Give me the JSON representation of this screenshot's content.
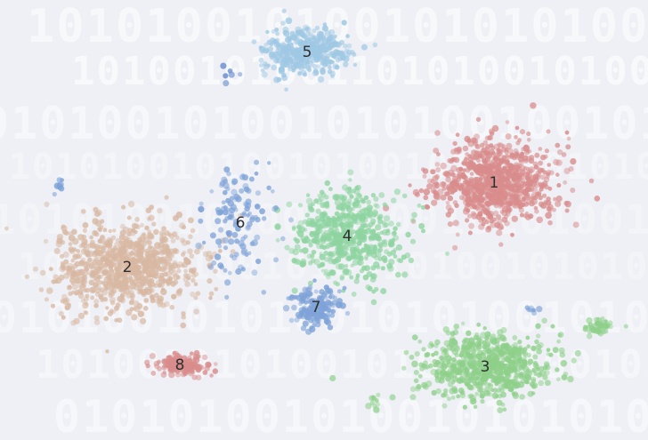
{
  "background_text": [
    "1010100101001010101001010010101",
    "101001010011010100101001010",
    "0101001010010101001001010100101",
    "1010100101001010010101001010",
    "0101010010100101001010100101",
    "1001010100101001010010101001",
    "0101001010100101010010100101",
    "1010010101001010010100101010",
    "0101010010100101010100101001"
  ],
  "chart_data": {
    "type": "scatter",
    "title": "",
    "xlabel": "",
    "ylabel": "",
    "grid": false,
    "legend": "none",
    "clusters": [
      {
        "label": "1",
        "color": "#d98c8c",
        "center": [
          555,
          205
        ],
        "spread": [
          78,
          56
        ],
        "count": 900
      },
      {
        "label": "2",
        "color": "#d8b8a2",
        "center": [
          143,
          300
        ],
        "spread": [
          95,
          60
        ],
        "count": 850
      },
      {
        "label": "3",
        "color": "#8ed08a",
        "center": [
          545,
          412
        ],
        "spread": [
          85,
          42
        ],
        "count": 650
      },
      {
        "label": "4",
        "color": "#8ed4a0",
        "center": [
          390,
          265
        ],
        "spread": [
          70,
          60
        ],
        "count": 550
      },
      {
        "label": "5",
        "color": "#9fc8e4",
        "center": [
          345,
          58
        ],
        "spread": [
          55,
          32
        ],
        "count": 380
      },
      {
        "label": "6",
        "color": "#7fa3d8",
        "center": [
          270,
          250
        ],
        "spread": [
          50,
          70
        ],
        "count": 130
      },
      {
        "label": "7",
        "color": "#7fa3d8",
        "center": [
          355,
          345
        ],
        "spread": [
          28,
          24
        ],
        "count": 170
      },
      {
        "label": "8",
        "color": "#d98c8c",
        "center": [
          202,
          410
        ],
        "spread": [
          34,
          14
        ],
        "count": 150
      }
    ],
    "extra_groups": [
      {
        "color": "#8ed08a",
        "center": [
          675,
          368
        ],
        "spread": [
          22,
          10
        ],
        "count": 45
      },
      {
        "color": "#8ed08a",
        "center": [
          418,
          452
        ],
        "spread": [
          10,
          8
        ],
        "count": 10
      },
      {
        "color": "#7fa3d8",
        "center": [
          66,
          210
        ],
        "spread": [
          6,
          8
        ],
        "count": 12
      },
      {
        "color": "#7fa3d8",
        "center": [
          600,
          348
        ],
        "spread": [
          10,
          5
        ],
        "count": 8
      },
      {
        "color": "#6a8fd0",
        "center": [
          262,
          86
        ],
        "spread": [
          20,
          22
        ],
        "count": 6
      }
    ]
  }
}
